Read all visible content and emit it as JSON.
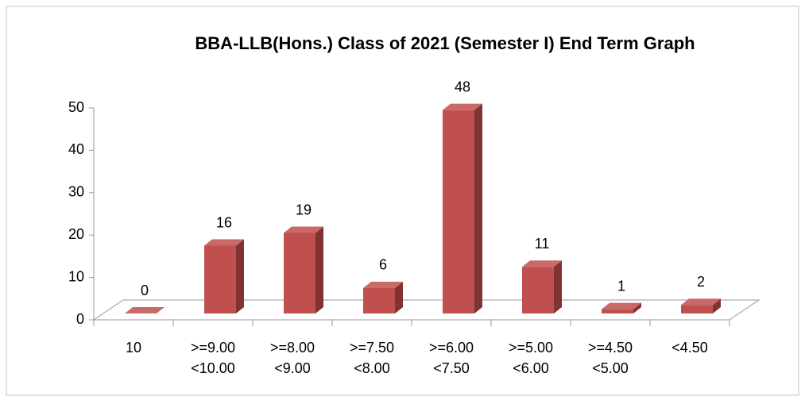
{
  "chart_data": {
    "type": "bar3d",
    "title": "BBA-LLB(Hons.) Class of 2021 (Semester I) End Term Graph",
    "categories": [
      "10",
      ">=9.00\n<10.00",
      ">=8.00\n<9.00",
      ">=7.50\n<8.00",
      ">=6.00\n<7.50",
      ">=5.00\n<6.00",
      ">=4.50\n<5.00",
      "<4.50"
    ],
    "values": [
      0,
      16,
      19,
      6,
      48,
      11,
      1,
      2
    ],
    "color": "#c0504d",
    "ylim": [
      0,
      50
    ],
    "yticks": [
      0,
      10,
      20,
      30,
      40,
      50
    ],
    "grid": false
  }
}
